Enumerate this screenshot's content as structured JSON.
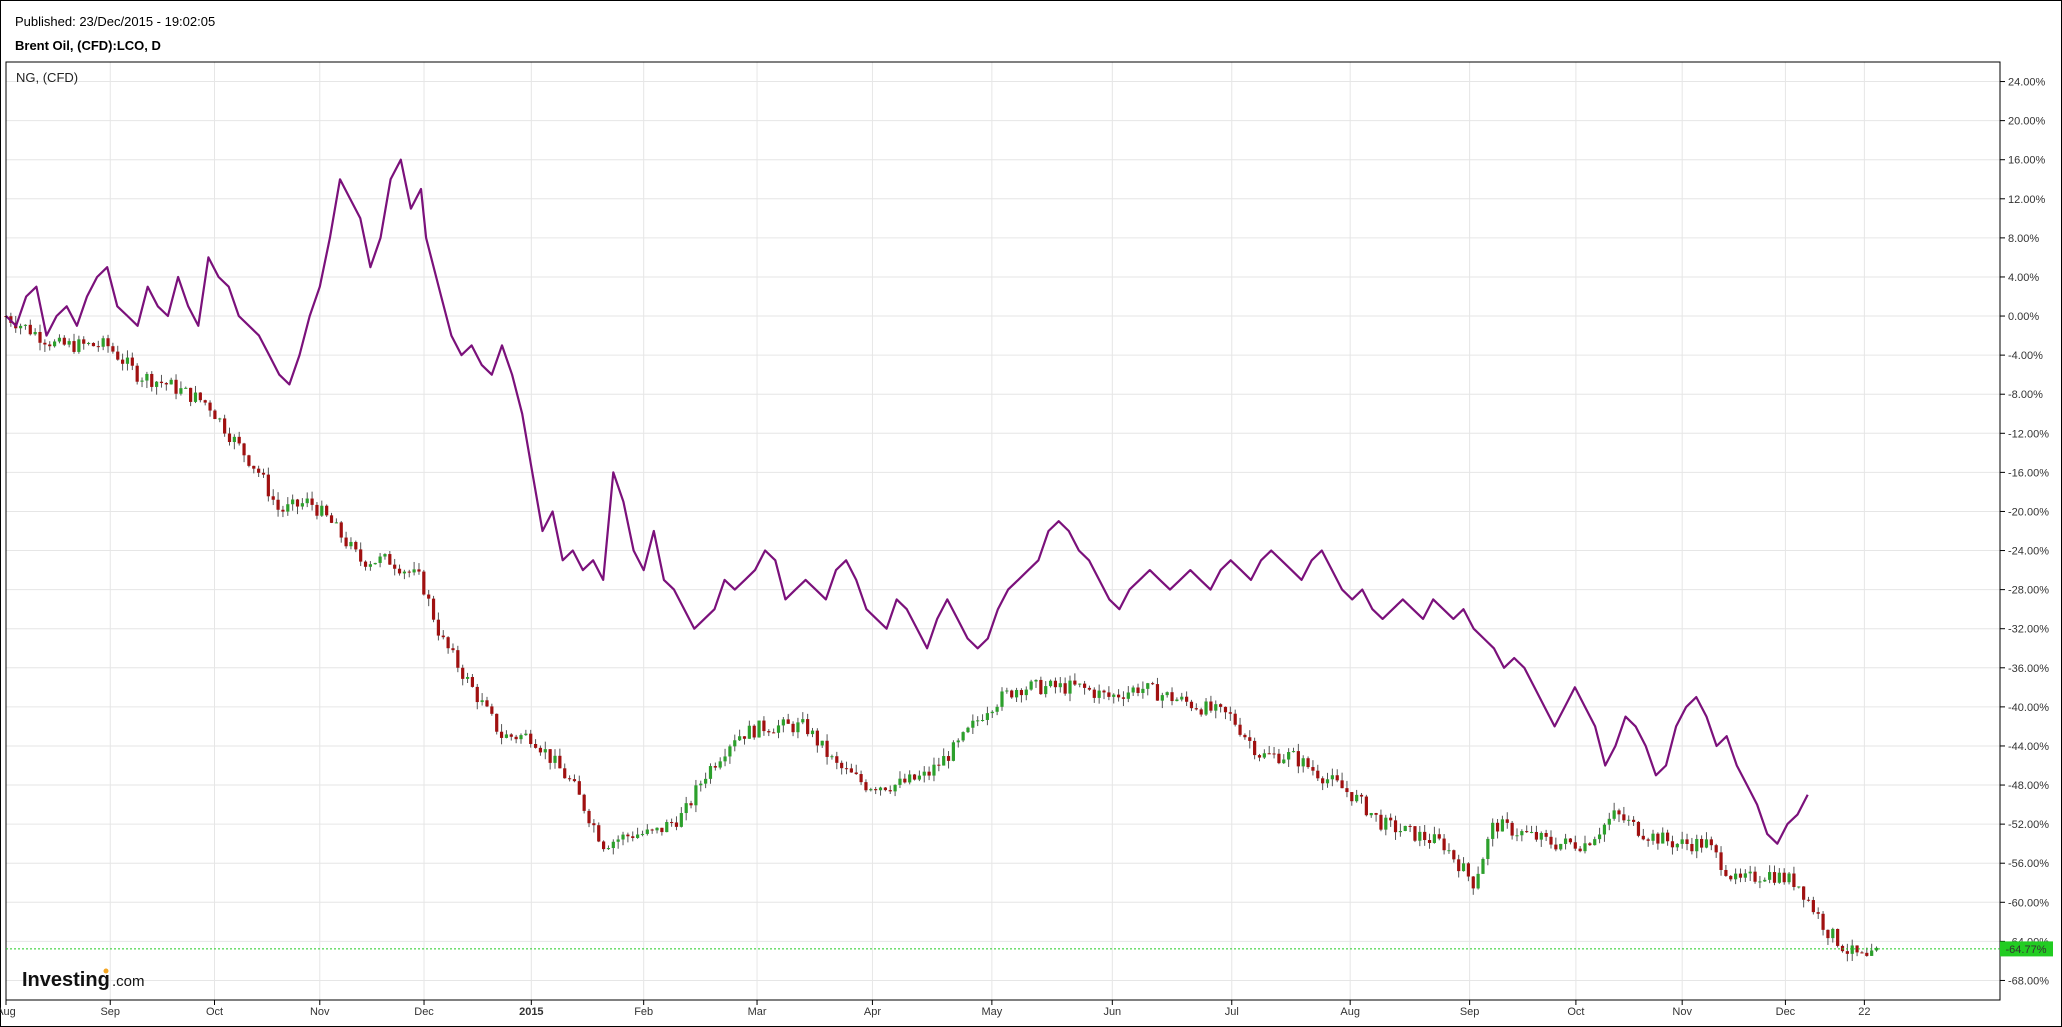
{
  "header": {
    "published": "Published: 23/Dec/2015 - 19:02:05",
    "instrument": "Brent Oil, (CFD):LCO, D"
  },
  "logo": {
    "bold": "Investing",
    "suffix": ".com"
  },
  "colors": {
    "ng_line": "#7b117b",
    "up_candle": "#2ca02c",
    "down_candle": "#a01010",
    "wick": "#555555",
    "grid": "#e6e6e6",
    "last_price": "#22cc22"
  },
  "chart_data": {
    "type": "line",
    "comparison_label": "NG,  (CFD)",
    "y_unit": "%",
    "ylim": [
      -70,
      26
    ],
    "y_ticks": [
      "24.00%",
      "20.00%",
      "16.00%",
      "12.00%",
      "8.00%",
      "4.00%",
      "0.00%",
      "-4.00%",
      "-8.00%",
      "-12.00%",
      "-16.00%",
      "-20.00%",
      "-24.00%",
      "-28.00%",
      "-32.00%",
      "-36.00%",
      "-40.00%",
      "-44.00%",
      "-48.00%",
      "-52.00%",
      "-56.00%",
      "-60.00%",
      "-64.00%",
      "-68.00%"
    ],
    "x_ticks": [
      "Aug",
      "Sep",
      "Oct",
      "Nov",
      "Dec",
      "2015",
      "Feb",
      "Mar",
      "Apr",
      "May",
      "Jun",
      "Jul",
      "Aug",
      "Sep",
      "Oct",
      "Nov",
      "Dec",
      "22"
    ],
    "x_tick_pos": [
      0,
      1.03,
      2.06,
      3.1,
      4.13,
      5.19,
      6.3,
      7.42,
      8.56,
      9.74,
      10.93,
      12.11,
      13.28,
      14.46,
      15.51,
      16.56,
      17.58,
      18.36
    ],
    "last_value_label": "-64.77%",
    "last_value": -64.77,
    "grid": true,
    "series": [
      {
        "key": "ng",
        "points": [
          [
            0,
            0
          ],
          [
            0.1,
            -1
          ],
          [
            0.2,
            2
          ],
          [
            0.3,
            3
          ],
          [
            0.4,
            -2
          ],
          [
            0.5,
            0
          ],
          [
            0.6,
            1
          ],
          [
            0.7,
            -1
          ],
          [
            0.8,
            2
          ],
          [
            0.9,
            4
          ],
          [
            1.0,
            5
          ],
          [
            1.1,
            1
          ],
          [
            1.2,
            0
          ],
          [
            1.3,
            -1
          ],
          [
            1.4,
            3
          ],
          [
            1.5,
            1
          ],
          [
            1.6,
            0
          ],
          [
            1.7,
            4
          ],
          [
            1.8,
            1
          ],
          [
            1.9,
            -1
          ],
          [
            2.0,
            6
          ],
          [
            2.1,
            4
          ],
          [
            2.2,
            3
          ],
          [
            2.3,
            0
          ],
          [
            2.5,
            -2
          ],
          [
            2.6,
            -4
          ],
          [
            2.7,
            -6
          ],
          [
            2.8,
            -7
          ],
          [
            2.9,
            -4
          ],
          [
            3.0,
            0
          ],
          [
            3.1,
            3
          ],
          [
            3.2,
            8
          ],
          [
            3.3,
            14
          ],
          [
            3.4,
            12
          ],
          [
            3.5,
            10
          ],
          [
            3.6,
            5
          ],
          [
            3.7,
            8
          ],
          [
            3.8,
            14
          ],
          [
            3.9,
            16
          ],
          [
            4.0,
            11
          ],
          [
            4.1,
            13
          ],
          [
            4.15,
            8
          ],
          [
            4.3,
            2
          ],
          [
            4.4,
            -2
          ],
          [
            4.5,
            -4
          ],
          [
            4.6,
            -3
          ],
          [
            4.7,
            -5
          ],
          [
            4.8,
            -6
          ],
          [
            4.9,
            -3
          ],
          [
            5.0,
            -6
          ],
          [
            5.1,
            -10
          ],
          [
            5.2,
            -16
          ],
          [
            5.3,
            -22
          ],
          [
            5.4,
            -20
          ],
          [
            5.5,
            -25
          ],
          [
            5.6,
            -24
          ],
          [
            5.7,
            -26
          ],
          [
            5.8,
            -25
          ],
          [
            5.9,
            -27
          ],
          [
            6.0,
            -16
          ],
          [
            6.1,
            -19
          ],
          [
            6.2,
            -24
          ],
          [
            6.3,
            -26
          ],
          [
            6.4,
            -22
          ],
          [
            6.5,
            -27
          ],
          [
            6.6,
            -28
          ],
          [
            6.7,
            -30
          ],
          [
            6.8,
            -32
          ],
          [
            6.9,
            -31
          ],
          [
            7.0,
            -30
          ],
          [
            7.1,
            -27
          ],
          [
            7.2,
            -28
          ],
          [
            7.3,
            -27
          ],
          [
            7.4,
            -26
          ],
          [
            7.5,
            -24
          ],
          [
            7.6,
            -25
          ],
          [
            7.7,
            -29
          ],
          [
            7.8,
            -28
          ],
          [
            7.9,
            -27
          ],
          [
            8.0,
            -28
          ],
          [
            8.1,
            -29
          ],
          [
            8.2,
            -26
          ],
          [
            8.3,
            -25
          ],
          [
            8.4,
            -27
          ],
          [
            8.5,
            -30
          ],
          [
            8.6,
            -31
          ],
          [
            8.7,
            -32
          ],
          [
            8.8,
            -29
          ],
          [
            8.9,
            -30
          ],
          [
            9.0,
            -32
          ],
          [
            9.1,
            -34
          ],
          [
            9.2,
            -31
          ],
          [
            9.3,
            -29
          ],
          [
            9.4,
            -31
          ],
          [
            9.5,
            -33
          ],
          [
            9.6,
            -34
          ],
          [
            9.7,
            -33
          ],
          [
            9.8,
            -30
          ],
          [
            9.9,
            -28
          ],
          [
            10.0,
            -27
          ],
          [
            10.1,
            -26
          ],
          [
            10.2,
            -25
          ],
          [
            10.3,
            -22
          ],
          [
            10.4,
            -21
          ],
          [
            10.5,
            -22
          ],
          [
            10.6,
            -24
          ],
          [
            10.7,
            -25
          ],
          [
            10.8,
            -27
          ],
          [
            10.9,
            -29
          ],
          [
            11.0,
            -30
          ],
          [
            11.1,
            -28
          ],
          [
            11.2,
            -27
          ],
          [
            11.3,
            -26
          ],
          [
            11.4,
            -27
          ],
          [
            11.5,
            -28
          ],
          [
            11.6,
            -27
          ],
          [
            11.7,
            -26
          ],
          [
            11.8,
            -27
          ],
          [
            11.9,
            -28
          ],
          [
            12.0,
            -26
          ],
          [
            12.1,
            -25
          ],
          [
            12.2,
            -26
          ],
          [
            12.3,
            -27
          ],
          [
            12.4,
            -25
          ],
          [
            12.5,
            -24
          ],
          [
            12.6,
            -25
          ],
          [
            12.7,
            -26
          ],
          [
            12.8,
            -27
          ],
          [
            12.9,
            -25
          ],
          [
            13.0,
            -24
          ],
          [
            13.1,
            -26
          ],
          [
            13.2,
            -28
          ],
          [
            13.3,
            -29
          ],
          [
            13.4,
            -28
          ],
          [
            13.5,
            -30
          ],
          [
            13.6,
            -31
          ],
          [
            13.7,
            -30
          ],
          [
            13.8,
            -29
          ],
          [
            13.9,
            -30
          ],
          [
            14.0,
            -31
          ],
          [
            14.1,
            -29
          ],
          [
            14.2,
            -30
          ],
          [
            14.3,
            -31
          ],
          [
            14.4,
            -30
          ],
          [
            14.5,
            -32
          ],
          [
            14.6,
            -33
          ],
          [
            14.7,
            -34
          ],
          [
            14.8,
            -36
          ],
          [
            14.9,
            -35
          ],
          [
            15.0,
            -36
          ],
          [
            15.1,
            -38
          ],
          [
            15.2,
            -40
          ],
          [
            15.3,
            -42
          ],
          [
            15.4,
            -40
          ],
          [
            15.5,
            -38
          ],
          [
            15.6,
            -40
          ],
          [
            15.7,
            -42
          ],
          [
            15.8,
            -46
          ],
          [
            15.9,
            -44
          ],
          [
            16.0,
            -41
          ],
          [
            16.1,
            -42
          ],
          [
            16.2,
            -44
          ],
          [
            16.3,
            -47
          ],
          [
            16.4,
            -46
          ],
          [
            16.5,
            -42
          ],
          [
            16.6,
            -40
          ],
          [
            16.7,
            -39
          ],
          [
            16.8,
            -41
          ],
          [
            16.9,
            -44
          ],
          [
            17.0,
            -43
          ],
          [
            17.1,
            -46
          ],
          [
            17.2,
            -48
          ],
          [
            17.3,
            -50
          ],
          [
            17.4,
            -53
          ],
          [
            17.5,
            -54
          ],
          [
            17.6,
            -52
          ],
          [
            17.7,
            -51
          ],
          [
            17.8,
            -49
          ]
        ]
      }
    ]
  }
}
